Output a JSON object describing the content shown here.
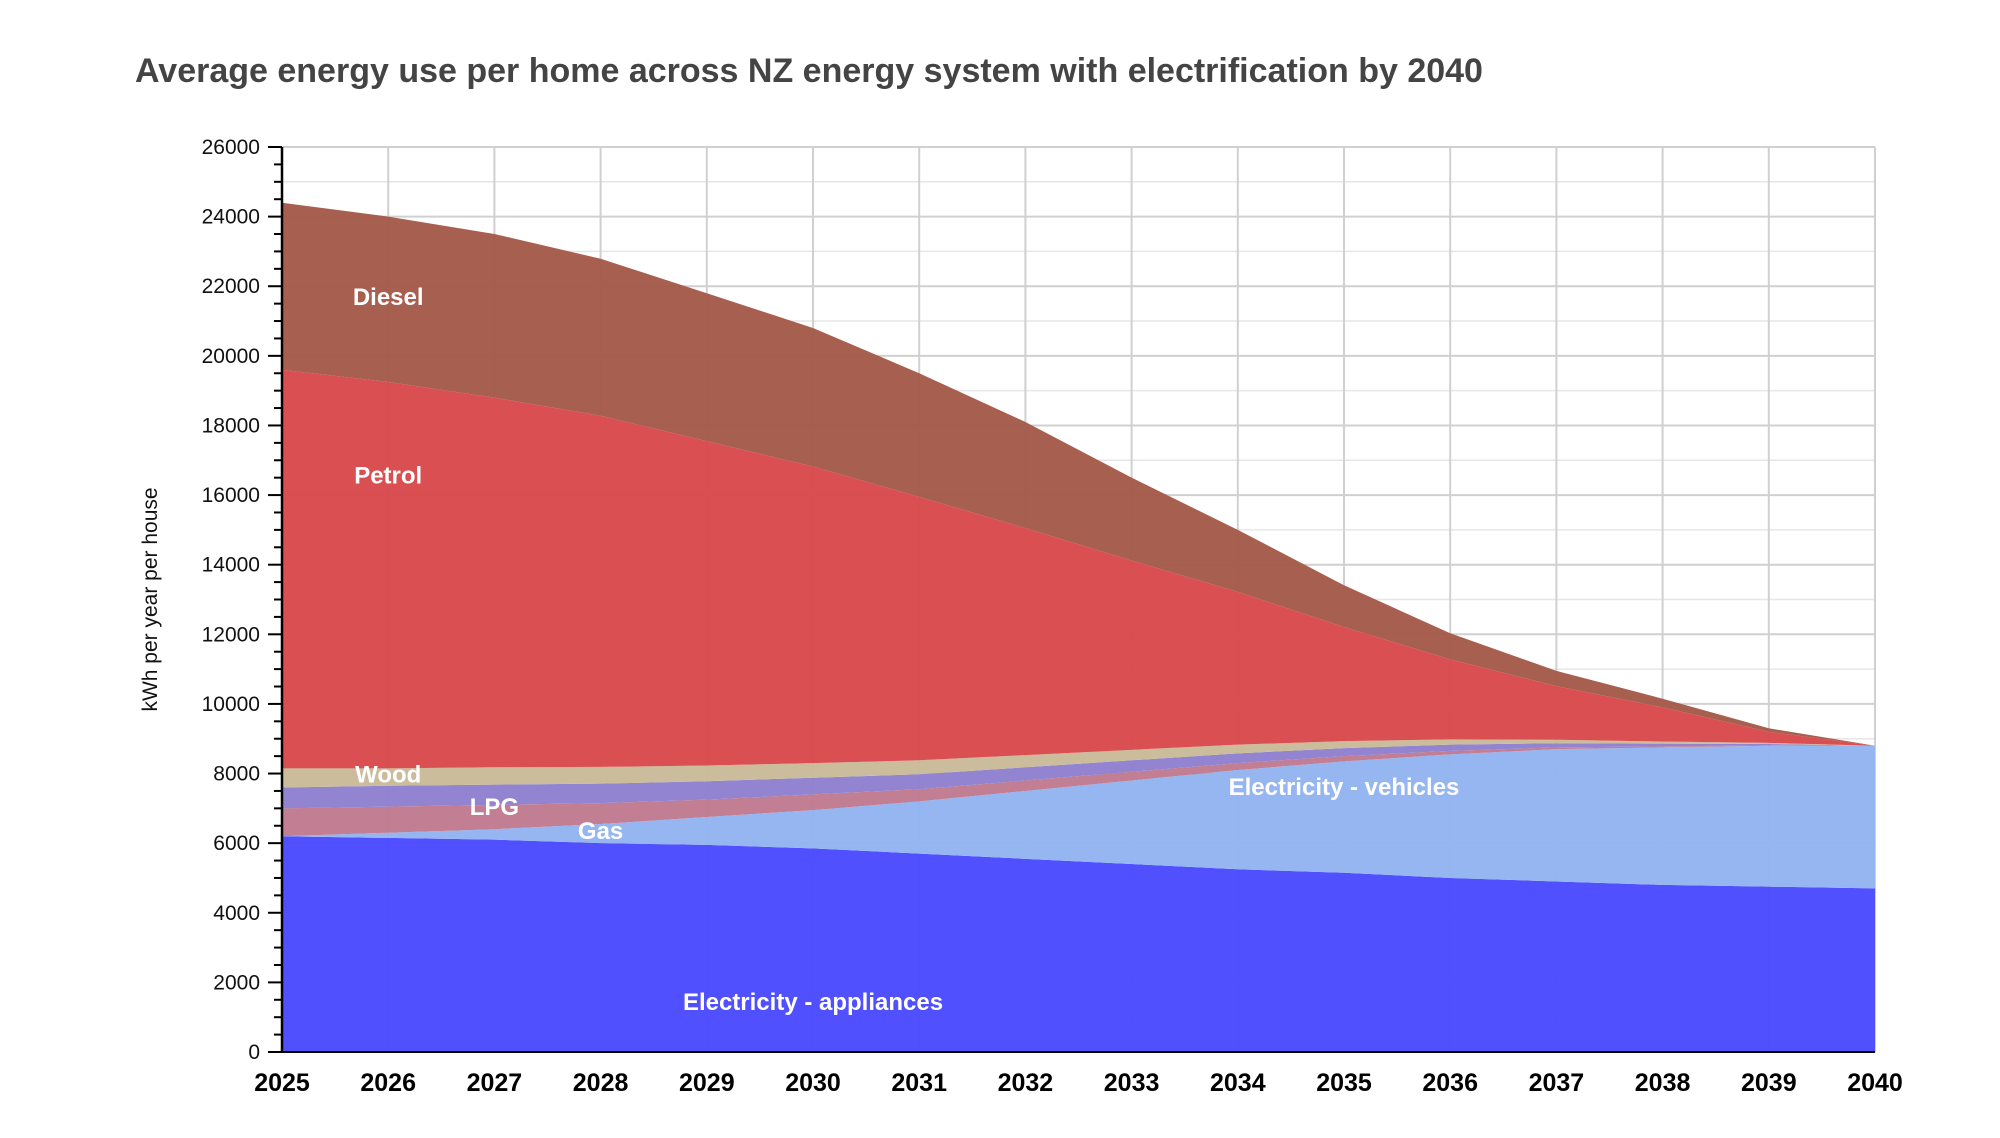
{
  "chart_data": {
    "type": "area",
    "stacked": true,
    "title": "Average energy use per home across NZ energy system with electrification by 2040",
    "xlabel": "",
    "ylabel": "kWh per year per house",
    "ylim": [
      0,
      26000
    ],
    "yticks": [
      0,
      2000,
      4000,
      6000,
      8000,
      10000,
      12000,
      14000,
      16000,
      18000,
      20000,
      22000,
      24000,
      26000
    ],
    "x": [
      "2025",
      "2026",
      "2027",
      "2028",
      "2029",
      "2030",
      "2031",
      "2032",
      "2033",
      "2034",
      "2035",
      "2036",
      "2037",
      "2038",
      "2039",
      "2040"
    ],
    "grid": true,
    "legend": "none (series labelled inside areas)",
    "series": [
      {
        "name": "Electricity - appliances",
        "color": "#4a4afe",
        "values": [
          6200,
          6150,
          6100,
          6000,
          5950,
          5850,
          5700,
          5550,
          5400,
          5250,
          5150,
          5000,
          4900,
          4800,
          4750,
          4700
        ]
      },
      {
        "name": "Electricity - vehicles",
        "color": "#93b4f1",
        "values": [
          0,
          150,
          300,
          550,
          800,
          1100,
          1500,
          1950,
          2400,
          2850,
          3200,
          3550,
          3800,
          3950,
          4050,
          4100
        ]
      },
      {
        "name": "Gas",
        "color": "#c07a90",
        "values": [
          800,
          750,
          700,
          600,
          500,
          450,
          350,
          300,
          250,
          200,
          150,
          100,
          50,
          30,
          10,
          0
        ]
      },
      {
        "name": "LPG",
        "color": "#8e80cf",
        "values": [
          600,
          600,
          580,
          560,
          530,
          480,
          430,
          380,
          330,
          280,
          230,
          180,
          120,
          80,
          40,
          0
        ]
      },
      {
        "name": "Wood",
        "color": "#c9bb99",
        "values": [
          550,
          500,
          500,
          480,
          450,
          420,
          400,
          350,
          300,
          250,
          200,
          150,
          100,
          60,
          30,
          0
        ]
      },
      {
        "name": "Petrol",
        "color": "#d94a4c",
        "values": [
          11450,
          11100,
          10620,
          10090,
          9320,
          8520,
          7570,
          6520,
          5440,
          4390,
          3280,
          2300,
          1540,
          980,
          320,
          0
        ]
      },
      {
        "name": "Diesel",
        "color": "#a45a4a",
        "values": [
          4800,
          4750,
          4700,
          4510,
          4250,
          3980,
          3550,
          3050,
          2380,
          1780,
          1200,
          750,
          440,
          250,
          100,
          0
        ]
      }
    ],
    "series_labels": [
      {
        "name": "Diesel",
        "text": "Diesel"
      },
      {
        "name": "Petrol",
        "text": "Petrol"
      },
      {
        "name": "Wood",
        "text": "Wood"
      },
      {
        "name": "LPG",
        "text": "LPG"
      },
      {
        "name": "Gas",
        "text": "Gas"
      },
      {
        "name": "Electricity - vehicles",
        "text": "Electricity - vehicles"
      },
      {
        "name": "Electricity - appliances",
        "text": "Electricity - appliances"
      }
    ],
    "colors": {
      "grid": "#d0d0d0",
      "axis": "#000000",
      "title": "#444444"
    }
  }
}
